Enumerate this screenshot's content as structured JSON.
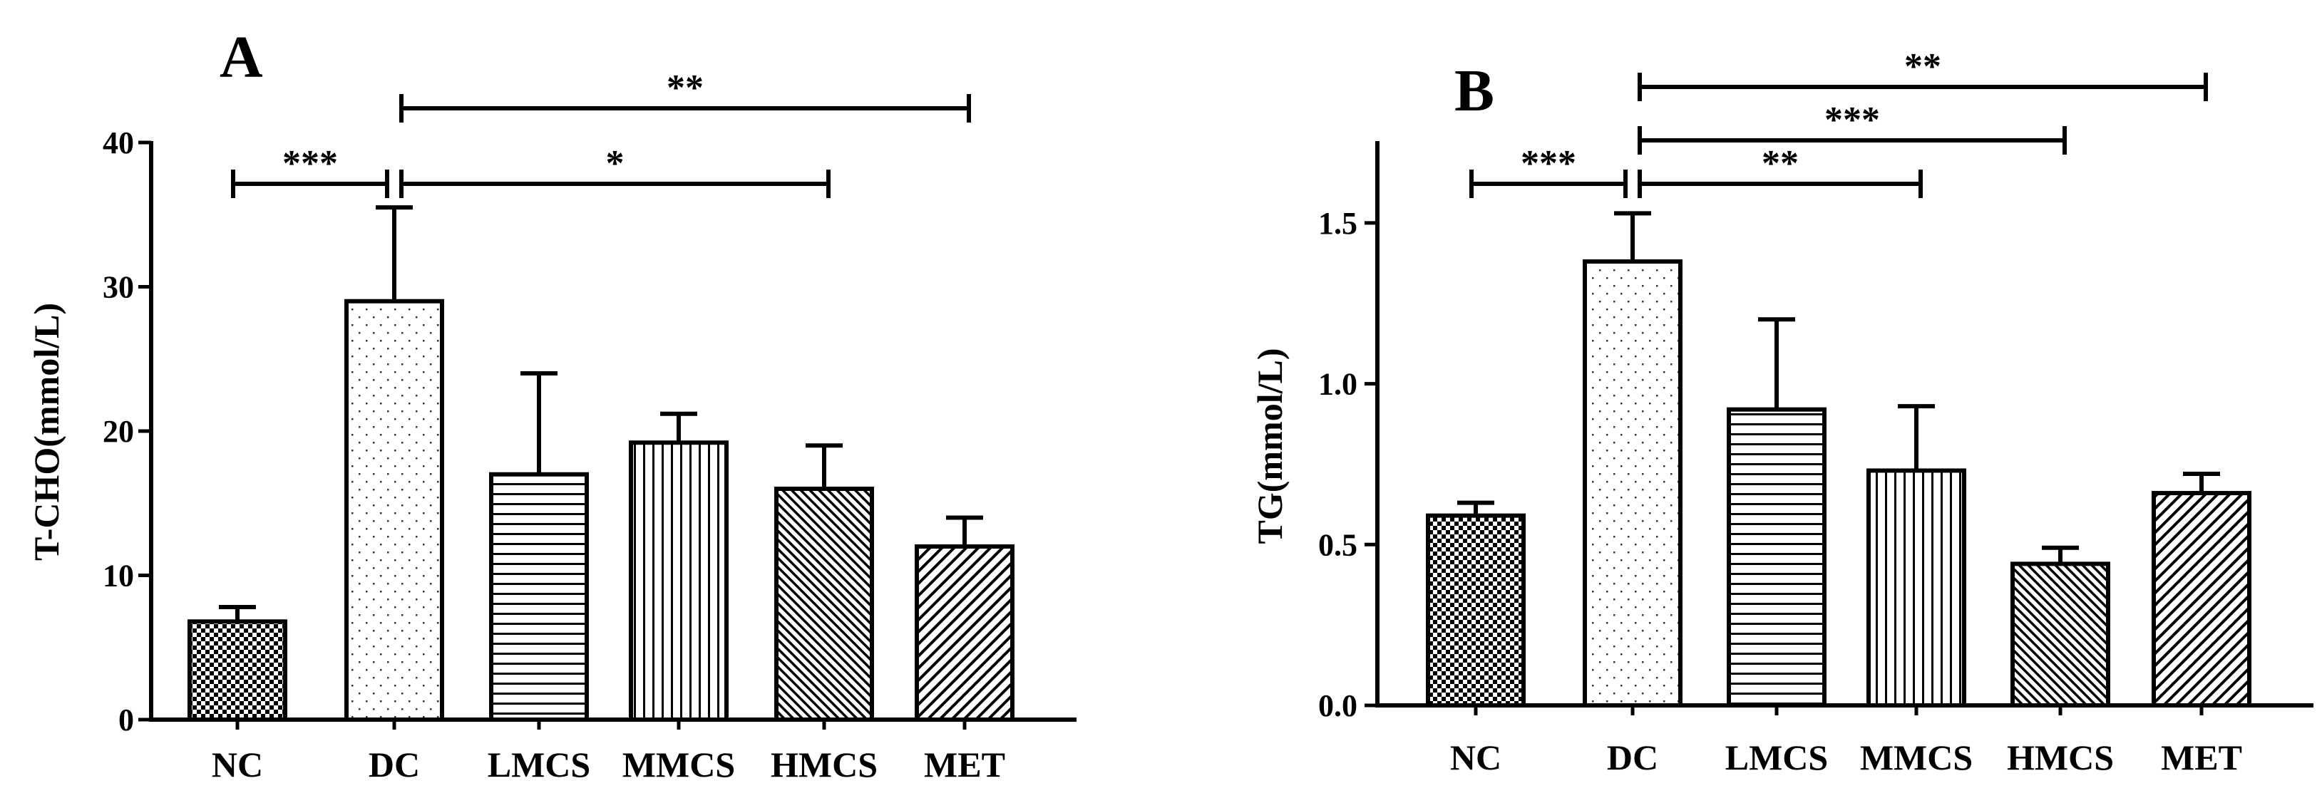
{
  "chart_data": [
    {
      "type": "bar",
      "panel_label": "A",
      "ylabel": "T-CHO(mmol/L)",
      "categories": [
        "NC",
        "DC",
        "LMCS",
        "MMCS",
        "HMCS",
        "MET"
      ],
      "values": [
        6.8,
        29.0,
        17.0,
        19.2,
        16.0,
        12.0
      ],
      "errors": [
        1.0,
        6.5,
        7.0,
        2.0,
        3.0,
        2.0
      ],
      "patterns": [
        "checker",
        "dots",
        "hlines",
        "vlines",
        "diag-dense",
        "diag-sparse"
      ],
      "ylim": [
        0,
        40
      ],
      "yticks": [
        "0",
        "10",
        "20",
        "30",
        "40"
      ],
      "ytick_values": [
        0,
        10,
        20,
        30,
        40
      ],
      "significance": [
        {
          "from": "NC",
          "to": "DC",
          "label": "***"
        },
        {
          "from": "DC",
          "to": "HMCS",
          "label": "*"
        },
        {
          "from": "DC",
          "to": "MET",
          "label": "**"
        }
      ]
    },
    {
      "type": "bar",
      "panel_label": "B",
      "ylabel": "TG(mmol/L)",
      "categories": [
        "NC",
        "DC",
        "LMCS",
        "MMCS",
        "HMCS",
        "MET"
      ],
      "values": [
        0.59,
        1.38,
        0.92,
        0.73,
        0.44,
        0.66
      ],
      "errors": [
        0.04,
        0.15,
        0.28,
        0.2,
        0.05,
        0.06
      ],
      "patterns": [
        "checker",
        "dots",
        "hlines",
        "vlines",
        "diag-dense",
        "diag-sparse"
      ],
      "ylim": [
        0,
        1.75
      ],
      "yticks": [
        "0.0",
        "0.5",
        "1.0",
        "1.5"
      ],
      "ytick_values": [
        0,
        0.5,
        1.0,
        1.5
      ],
      "significance": [
        {
          "from": "NC",
          "to": "DC",
          "label": "***"
        },
        {
          "from": "DC",
          "to": "MMCS",
          "label": "**"
        },
        {
          "from": "DC",
          "to": "HMCS",
          "label": "***"
        },
        {
          "from": "DC",
          "to": "MET",
          "label": "**"
        }
      ]
    }
  ]
}
